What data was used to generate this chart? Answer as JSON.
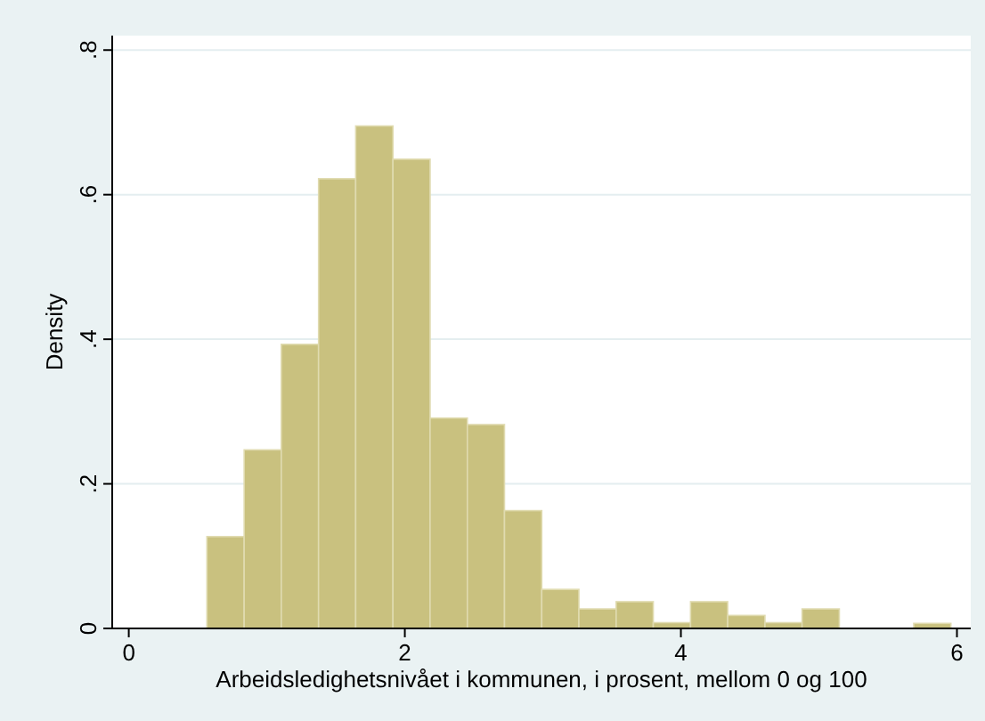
{
  "chart_data": {
    "type": "histogram",
    "xlabel": "Arbeidsledighetsnivået i kommunen, i prosent, mellom 0 og 100",
    "ylabel": "Density",
    "bins": [
      0.566,
      0.836,
      1.105,
      1.375,
      1.644,
      1.914,
      2.183,
      2.453,
      2.722,
      2.992,
      3.261,
      3.531,
      3.8,
      4.07,
      4.339,
      4.609,
      4.878,
      5.148,
      5.417,
      5.687,
      5.956
    ],
    "values": [
      0.127,
      0.247,
      0.393,
      0.622,
      0.695,
      0.649,
      0.291,
      0.282,
      0.163,
      0.054,
      0.027,
      0.037,
      0.008,
      0.037,
      0.018,
      0.008,
      0.027,
      0,
      0,
      0.007
    ],
    "color": "#c9c17f",
    "xlim": [
      -0.12,
      6.1
    ],
    "ylim": [
      0,
      0.82
    ],
    "xticks": [
      0,
      2,
      4,
      6
    ],
    "yticks": [
      0,
      {
        "value": 0.2,
        "label": ".2"
      },
      {
        "value": 0.4,
        "label": ".4"
      },
      {
        "value": 0.6,
        "label": ".6"
      },
      {
        "value": 0.8,
        "label": ".8"
      }
    ],
    "grid": "y"
  }
}
